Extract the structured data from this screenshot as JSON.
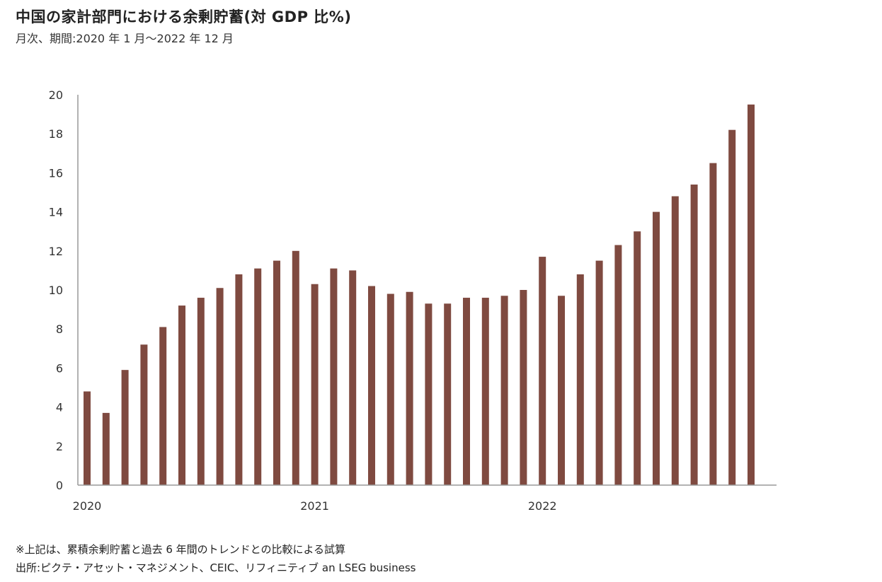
{
  "header": {
    "title": "中国の家計部門における余剰貯蓄(対 GDP 比%)",
    "subtitle": "月次、期間:2020 年 1 月〜2022 年 12 月"
  },
  "footer": {
    "note": "※上記は、累積余剰貯蓄と過去 6 年間のトレンドとの比較による試算",
    "source": "出所:ピクテ・アセット・マネジメント、CEIC、リフィニティブ an LSEG business"
  },
  "colors": {
    "bar": "#7f4a40",
    "axis": "#999999",
    "text": "#333333"
  },
  "chart_data": {
    "type": "bar",
    "xlabel": "",
    "ylabel": "",
    "ylim": [
      0,
      20
    ],
    "y_ticks": [
      "0",
      "2",
      "4",
      "6",
      "8",
      "10",
      "12",
      "14",
      "16",
      "18",
      "20"
    ],
    "x_tick_labels": [
      {
        "label": "2020",
        "index": 0
      },
      {
        "label": "2021",
        "index": 12
      },
      {
        "label": "2022",
        "index": 24
      }
    ],
    "grid": false,
    "categories": [
      "2020-01",
      "2020-02",
      "2020-03",
      "2020-04",
      "2020-05",
      "2020-06",
      "2020-07",
      "2020-08",
      "2020-09",
      "2020-10",
      "2020-11",
      "2020-12",
      "2021-01",
      "2021-02",
      "2021-03",
      "2021-04",
      "2021-05",
      "2021-06",
      "2021-07",
      "2021-08",
      "2021-09",
      "2021-10",
      "2021-11",
      "2021-12",
      "2022-01",
      "2022-02",
      "2022-03",
      "2022-04",
      "2022-05",
      "2022-06",
      "2022-07",
      "2022-08",
      "2022-09",
      "2022-10",
      "2022-11",
      "2022-12"
    ],
    "values": [
      4.8,
      3.7,
      5.9,
      7.2,
      8.1,
      9.2,
      9.6,
      10.1,
      10.8,
      11.1,
      11.5,
      12.0,
      10.3,
      11.1,
      11.0,
      10.2,
      9.8,
      9.9,
      9.3,
      9.3,
      9.6,
      9.6,
      9.7,
      10.0,
      11.7,
      9.7,
      10.8,
      11.5,
      12.3,
      13.0,
      14.0,
      14.8,
      15.4,
      16.5,
      18.2,
      19.5
    ]
  }
}
